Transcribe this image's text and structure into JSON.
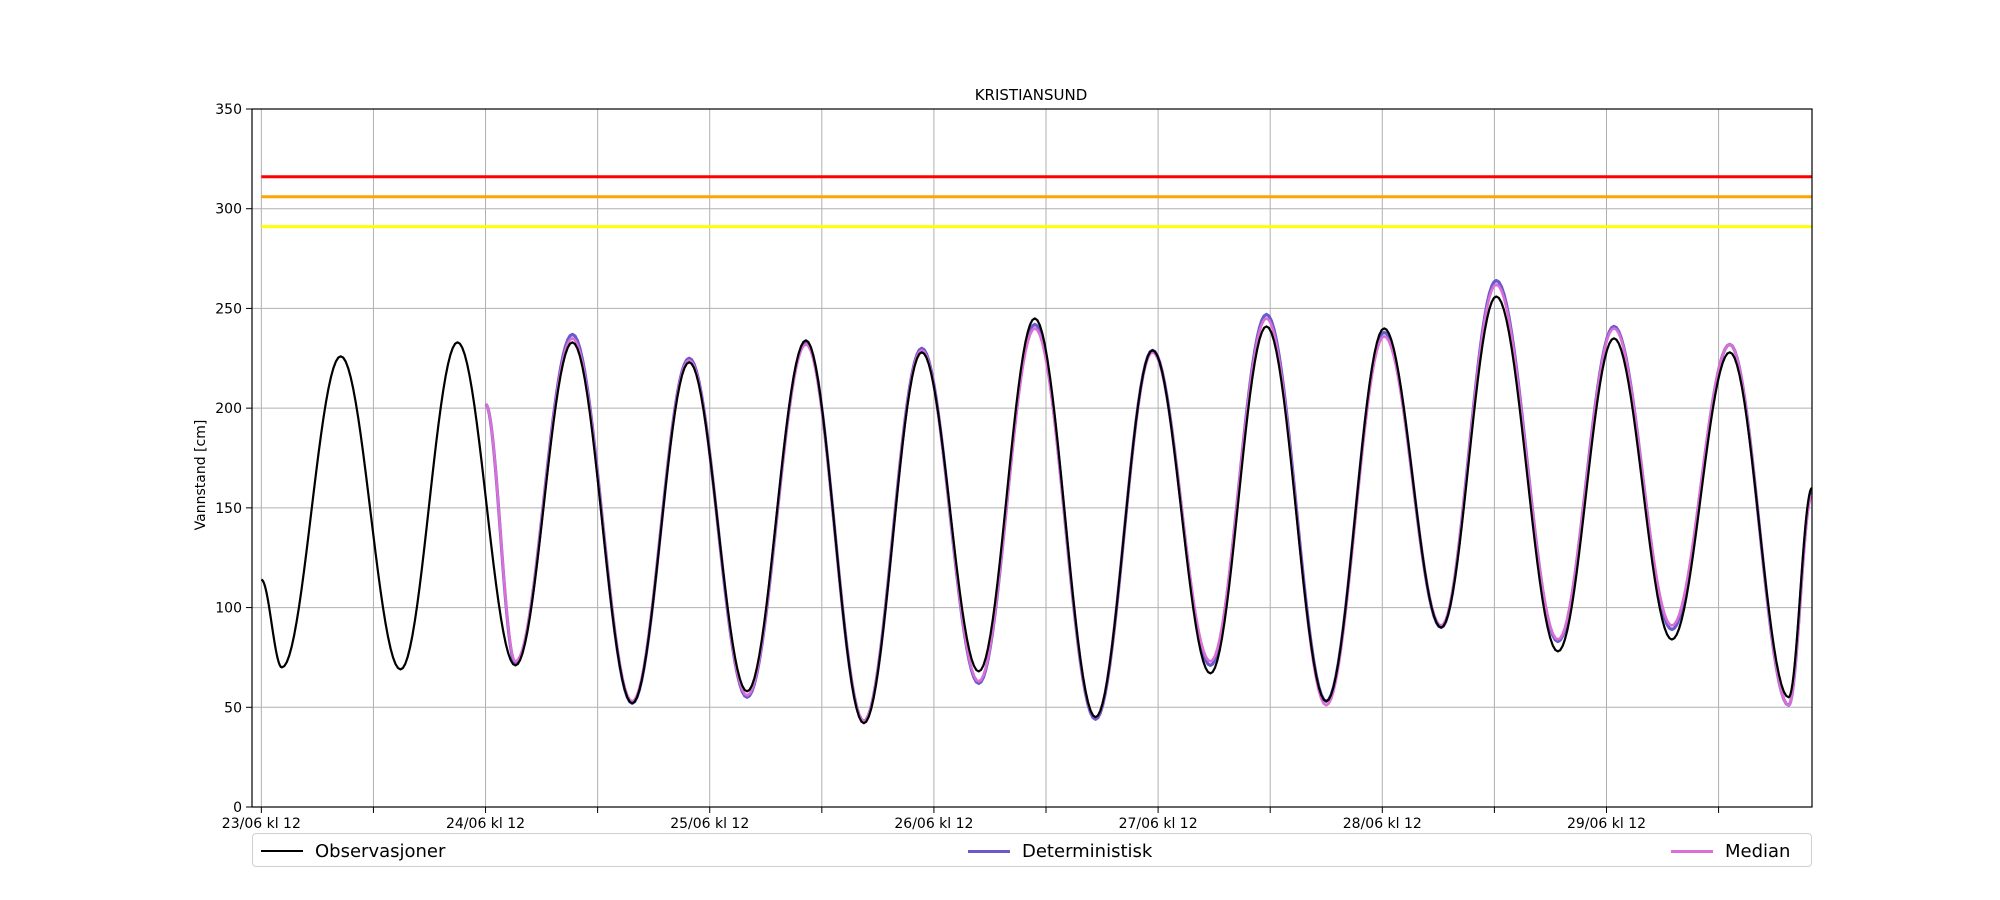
{
  "chart_data": {
    "type": "line",
    "title": "KRISTIANSUND",
    "xlabel": "",
    "ylabel": "Vannstand [cm]",
    "ylim": [
      0,
      350
    ],
    "xlim_hours": [
      -1,
      166
    ],
    "yticks": [
      0,
      50,
      100,
      150,
      200,
      250,
      300,
      350
    ],
    "xticks": [
      {
        "hour": 0,
        "label": "23/06 kl 12"
      },
      {
        "hour": 12,
        "label": ""
      },
      {
        "hour": 24,
        "label": "24/06 kl 12"
      },
      {
        "hour": 36,
        "label": ""
      },
      {
        "hour": 48,
        "label": "25/06 kl 12"
      },
      {
        "hour": 60,
        "label": ""
      },
      {
        "hour": 72,
        "label": "26/06 kl 12"
      },
      {
        "hour": 84,
        "label": ""
      },
      {
        "hour": 96,
        "label": "27/06 kl 12"
      },
      {
        "hour": 108,
        "label": ""
      },
      {
        "hour": 120,
        "label": "28/06 kl 12"
      },
      {
        "hour": 132,
        "label": ""
      },
      {
        "hour": 144,
        "label": "29/06 kl 12"
      },
      {
        "hour": 156,
        "label": ""
      }
    ],
    "grid": true,
    "threshold_lines": [
      {
        "value": 316,
        "color": "#ff0000"
      },
      {
        "value": 306,
        "color": "#ffa500"
      },
      {
        "value": 291,
        "color": "#ffff00"
      }
    ],
    "series": [
      {
        "name": "Observasjoner",
        "color": "#000000",
        "start_hour": 0,
        "start_value": 114,
        "end_hour": 166,
        "end_value": 160,
        "extremes": [
          [
            2.2,
            70
          ],
          [
            8.5,
            226
          ],
          [
            14.9,
            69
          ],
          [
            21.0,
            233
          ],
          [
            27.2,
            71
          ],
          [
            33.3,
            233
          ],
          [
            39.7,
            52
          ],
          [
            45.8,
            223
          ],
          [
            52.0,
            58
          ],
          [
            58.3,
            234
          ],
          [
            64.5,
            42
          ],
          [
            70.7,
            228
          ],
          [
            76.8,
            68
          ],
          [
            82.8,
            245
          ],
          [
            89.3,
            45
          ],
          [
            95.4,
            229
          ],
          [
            101.6,
            67
          ],
          [
            107.6,
            241
          ],
          [
            114.0,
            53
          ],
          [
            120.2,
            240
          ],
          [
            126.3,
            90
          ],
          [
            132.2,
            256
          ],
          [
            138.8,
            78
          ],
          [
            144.8,
            235
          ],
          [
            151.0,
            84
          ],
          [
            157.2,
            228
          ],
          [
            163.5,
            55
          ]
        ]
      },
      {
        "name": "Deterministisk",
        "color": "#6a5acd",
        "start_hour": 24,
        "start_value": 202,
        "end_hour": 166,
        "end_value": 158,
        "extremes": [
          [
            27.2,
            72
          ],
          [
            33.3,
            237
          ],
          [
            39.7,
            52
          ],
          [
            45.8,
            225
          ],
          [
            52.0,
            55
          ],
          [
            58.3,
            233
          ],
          [
            64.5,
            43
          ],
          [
            70.7,
            230
          ],
          [
            76.8,
            62
          ],
          [
            82.8,
            242
          ],
          [
            89.3,
            44
          ],
          [
            95.4,
            229
          ],
          [
            101.6,
            71
          ],
          [
            107.6,
            247
          ],
          [
            114.0,
            53
          ],
          [
            120.2,
            238
          ],
          [
            126.3,
            90
          ],
          [
            132.2,
            264
          ],
          [
            138.8,
            83
          ],
          [
            144.8,
            241
          ],
          [
            151.0,
            89
          ],
          [
            157.2,
            232
          ],
          [
            163.5,
            51
          ]
        ]
      },
      {
        "name": "Median",
        "color": "#da70d6",
        "start_hour": 24,
        "start_value": 202,
        "end_hour": 166,
        "end_value": 156,
        "extremes": [
          [
            27.2,
            73
          ],
          [
            33.3,
            235
          ],
          [
            39.7,
            53
          ],
          [
            45.8,
            224
          ],
          [
            52.0,
            56
          ],
          [
            58.3,
            232
          ],
          [
            64.5,
            43
          ],
          [
            70.7,
            229
          ],
          [
            76.8,
            63
          ],
          [
            82.8,
            240
          ],
          [
            89.3,
            45
          ],
          [
            95.4,
            228
          ],
          [
            101.6,
            73
          ],
          [
            107.6,
            245
          ],
          [
            114.0,
            51
          ],
          [
            120.2,
            236
          ],
          [
            126.3,
            91
          ],
          [
            132.2,
            262
          ],
          [
            138.8,
            84
          ],
          [
            144.8,
            240
          ],
          [
            151.0,
            91
          ],
          [
            157.2,
            232
          ],
          [
            163.5,
            51
          ]
        ]
      }
    ],
    "legend_position": "bottom"
  }
}
